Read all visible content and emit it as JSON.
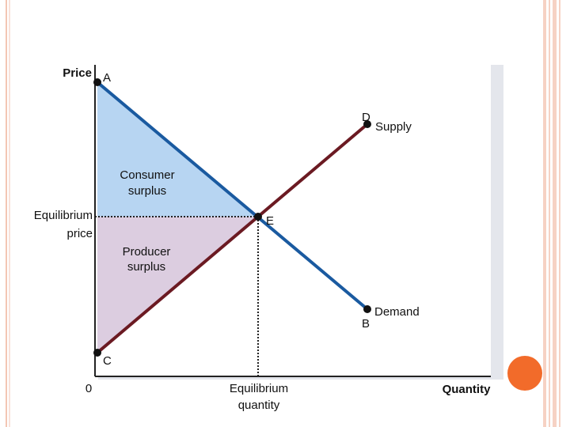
{
  "axes": {
    "y_label": "Price",
    "x_label": "Quantity",
    "origin": "0"
  },
  "points": {
    "a": "A",
    "b": "B",
    "c": "C",
    "d": "D",
    "e": "E"
  },
  "curves": {
    "supply": "Supply",
    "demand": "Demand"
  },
  "areas": {
    "consumer_surplus": [
      "Consumer",
      "surplus"
    ],
    "producer_surplus": [
      "Producer",
      "surplus"
    ]
  },
  "equilibrium": {
    "price": [
      "Equilibrium",
      "price"
    ],
    "quantity": [
      "Equilibrium",
      "quantity"
    ]
  }
}
